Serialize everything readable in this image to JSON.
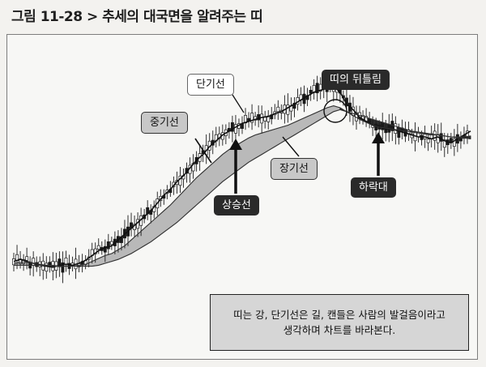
{
  "figure_title": "그림 11-28 > 추세의 대국면을 알려주는 띠",
  "labels": {
    "short_ma": "단기선",
    "mid_ma": "중기선",
    "long_ma": "장기선",
    "uptrend": "상승선",
    "twist": "띠의 뒤틀림",
    "downtrend": "하락대"
  },
  "note": {
    "line1": "띠는 강, 단기선은 길, 캔들은 사람의 발걸음이라고",
    "line2": "생각하며 차트를 바라본다."
  },
  "colors": {
    "band": "#b9b9b9",
    "band_dark": "#2e2e2e",
    "candle": "#1a1a1a",
    "dark_label": "#2a2a2a",
    "light_label": "#c8c8c8"
  },
  "chart_data": {
    "type": "line",
    "series": [
      {
        "values": [
          22,
          24,
          22,
          20,
          18,
          17,
          16,
          18,
          19,
          18,
          20,
          23,
          28,
          33,
          36,
          38,
          44,
          50,
          56,
          62,
          68,
          74,
          82,
          90,
          96,
          104,
          110,
          118,
          126,
          132,
          140,
          146,
          152,
          156,
          160,
          164,
          166,
          168,
          170,
          171,
          174,
          176,
          180,
          184,
          188,
          192,
          196,
          198,
          200,
          202,
          196,
          184,
          178,
          170,
          166,
          162,
          160,
          158,
          158,
          156,
          154,
          152,
          150,
          150,
          148,
          150,
          146,
          144,
          148,
          152,
          156
        ]
      },
      {
        "values": [
          20,
          21,
          21,
          20,
          19,
          18,
          17,
          17,
          17,
          17,
          18,
          19,
          22,
          25,
          28,
          30,
          34,
          38,
          44,
          50,
          56,
          62,
          68,
          74,
          80,
          87,
          94,
          101,
          108,
          114,
          120,
          126,
          132,
          137,
          141,
          145,
          149,
          152,
          154,
          156,
          158,
          160,
          162,
          165,
          168,
          171,
          174,
          177,
          180,
          182,
          180,
          176,
          172,
          168,
          165,
          162,
          160,
          159,
          158,
          157,
          156,
          155,
          154,
          153,
          152,
          152,
          151,
          150,
          150,
          150,
          151
        ]
      },
      {
        "values": [
          18,
          18,
          18,
          18,
          18,
          18,
          18,
          17,
          17,
          17,
          17,
          17,
          17,
          18,
          20,
          22,
          24,
          27,
          30,
          34,
          38,
          42,
          47,
          52,
          57,
          62,
          68,
          74,
          80,
          86,
          92,
          98,
          104,
          109,
          114,
          119,
          124,
          128,
          132,
          136,
          140,
          144,
          148,
          152,
          156,
          160,
          164,
          168,
          172,
          176,
          178,
          176,
          174,
          172,
          170,
          168,
          166,
          164,
          162,
          160,
          158,
          156,
          155,
          154,
          153,
          152,
          151,
          150,
          149,
          149,
          148
        ]
      }
    ]
  }
}
